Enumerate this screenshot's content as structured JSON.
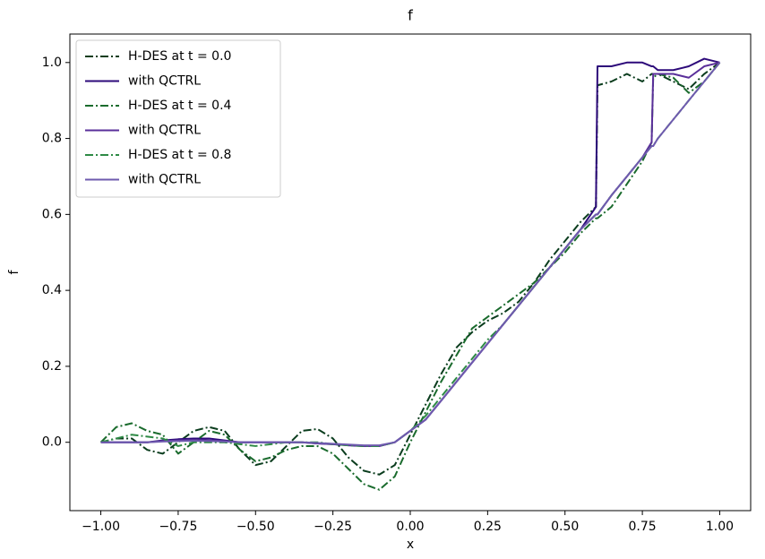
{
  "chart_data": {
    "type": "line",
    "title": "f",
    "x_label": "x",
    "y_label": "f",
    "x": [
      -1,
      -0.95,
      -0.9,
      -0.85,
      -0.8,
      -0.75,
      -0.7,
      -0.65,
      -0.6,
      -0.55,
      -0.5,
      -0.45,
      -0.4,
      -0.35,
      -0.3,
      -0.25,
      -0.2,
      -0.15,
      -0.1,
      -0.05,
      0,
      0.05,
      0.1,
      0.15,
      0.2,
      0.25,
      0.3,
      0.35,
      0.4,
      0.45,
      0.5,
      0.55,
      0.6,
      0.605,
      0.65,
      0.7,
      0.75,
      0.78,
      0.785,
      0.8,
      0.85,
      0.9,
      0.95,
      1.0
    ],
    "series": [
      {
        "name": "H-DES at t = 0.0",
        "color": "#0b3d1e",
        "linestyle": "dashdot",
        "values": [
          0,
          0.01,
          0.01,
          -0.02,
          -0.03,
          0.0,
          0.03,
          0.04,
          0.03,
          -0.02,
          -0.06,
          -0.05,
          -0.01,
          0.03,
          0.035,
          0.01,
          -0.04,
          -0.075,
          -0.085,
          -0.06,
          0.02,
          0.1,
          0.18,
          0.25,
          0.29,
          0.32,
          0.34,
          0.37,
          0.42,
          0.48,
          0.53,
          0.58,
          0.62,
          0.94,
          0.95,
          0.97,
          0.95,
          0.97,
          0.97,
          0.97,
          0.95,
          0.93,
          0.97,
          1.0
        ]
      },
      {
        "name": "with QCTRL",
        "color": "#2d0a7a",
        "linestyle": "solid",
        "values": [
          0,
          0,
          0,
          0,
          0.005,
          0.008,
          0.01,
          0.01,
          0.005,
          0,
          0,
          0,
          0,
          0,
          -0.003,
          -0.005,
          -0.008,
          -0.01,
          -0.01,
          0.0,
          0.03,
          0.06,
          0.11,
          0.16,
          0.21,
          0.26,
          0.31,
          0.36,
          0.41,
          0.46,
          0.51,
          0.56,
          0.62,
          0.99,
          0.99,
          1.0,
          1.0,
          0.99,
          0.99,
          0.98,
          0.98,
          0.99,
          1.01,
          1.0
        ]
      },
      {
        "name": "H-DES at t = 0.4",
        "color": "#1a6b2d",
        "linestyle": "dashdot",
        "values": [
          0,
          0.04,
          0.05,
          0.03,
          0.02,
          -0.03,
          0.0,
          0.03,
          0.02,
          -0.02,
          -0.05,
          -0.04,
          -0.02,
          -0.01,
          -0.01,
          -0.03,
          -0.07,
          -0.11,
          -0.125,
          -0.09,
          0.0,
          0.08,
          0.16,
          0.23,
          0.3,
          0.33,
          0.36,
          0.39,
          0.42,
          0.46,
          0.5,
          0.55,
          0.59,
          0.59,
          0.62,
          0.68,
          0.74,
          0.79,
          0.96,
          0.97,
          0.96,
          0.92,
          0.95,
          1.0
        ]
      },
      {
        "name": "with QCTRL",
        "color": "#5a2f9a",
        "linestyle": "solid",
        "values": [
          0,
          0,
          0,
          0,
          0.003,
          0.005,
          0.006,
          0.005,
          0.003,
          0,
          0,
          0,
          0,
          0,
          -0.003,
          -0.005,
          -0.007,
          -0.01,
          -0.01,
          0.0,
          0.03,
          0.06,
          0.11,
          0.16,
          0.21,
          0.26,
          0.31,
          0.36,
          0.41,
          0.46,
          0.51,
          0.56,
          0.6,
          0.6,
          0.65,
          0.7,
          0.75,
          0.79,
          0.97,
          0.97,
          0.97,
          0.96,
          0.99,
          1.0
        ]
      },
      {
        "name": "H-DES at t = 0.8",
        "color": "#2e8a45",
        "linestyle": "dashdot",
        "values": [
          0,
          0.01,
          0.02,
          0.015,
          0.01,
          -0.01,
          0.0,
          0.0,
          0.0,
          -0.005,
          -0.01,
          -0.005,
          0,
          0,
          0,
          -0.005,
          -0.008,
          -0.01,
          -0.01,
          0.0,
          0.03,
          0.07,
          0.12,
          0.17,
          0.22,
          0.27,
          0.31,
          0.36,
          0.41,
          0.46,
          0.51,
          0.56,
          0.6,
          0.6,
          0.65,
          0.7,
          0.75,
          0.78,
          0.78,
          0.8,
          0.85,
          0.9,
          0.95,
          1.0
        ]
      },
      {
        "name": "with QCTRL",
        "color": "#6e5aae",
        "linestyle": "solid",
        "values": [
          0,
          0,
          0,
          0,
          0.002,
          0.003,
          0.004,
          0.003,
          0.002,
          0,
          0,
          0,
          0,
          0,
          -0.002,
          -0.004,
          -0.006,
          -0.008,
          -0.008,
          0.0,
          0.03,
          0.06,
          0.11,
          0.16,
          0.21,
          0.26,
          0.31,
          0.36,
          0.41,
          0.46,
          0.51,
          0.56,
          0.6,
          0.6,
          0.65,
          0.7,
          0.75,
          0.78,
          0.78,
          0.8,
          0.85,
          0.9,
          0.95,
          1.0
        ]
      }
    ],
    "xlim": [
      -1.1,
      1.1
    ],
    "ylim": [
      -0.18,
      1.075
    ],
    "xticks": [
      {
        "value": -1,
        "label": "−1.00"
      },
      {
        "value": -0.75,
        "label": "−0.75"
      },
      {
        "value": -0.5,
        "label": "−0.50"
      },
      {
        "value": -0.25,
        "label": "−0.25"
      },
      {
        "value": 0,
        "label": "0.00"
      },
      0.25,
      {
        "value": 0.5,
        "label": "0.50"
      },
      0.75,
      {
        "value": 1,
        "label": "1.00"
      }
    ],
    "yticks": [
      {
        "value": 0,
        "label": "0.0"
      },
      0.2,
      0.4,
      0.6,
      0.8,
      {
        "value": 1,
        "label": "1.0"
      }
    ],
    "legend": "upper left",
    "grid": false
  }
}
